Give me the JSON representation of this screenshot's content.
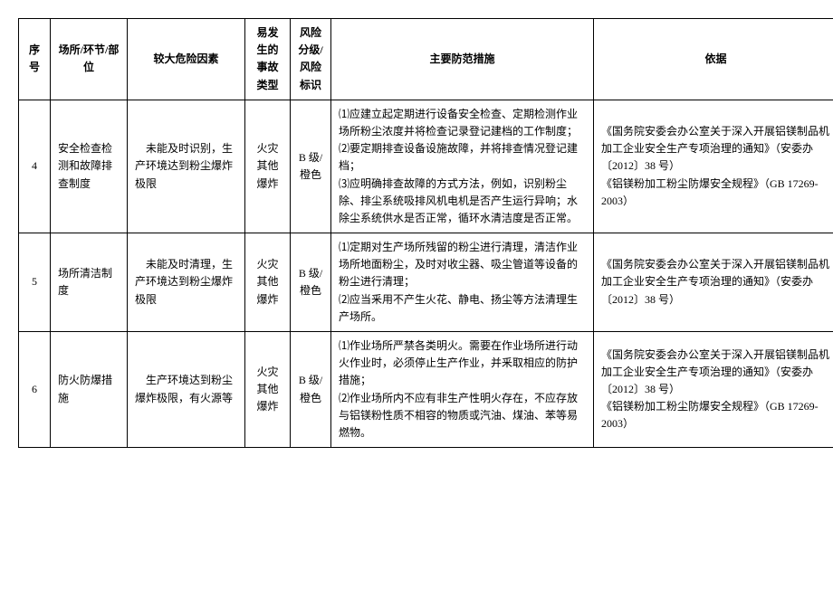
{
  "table": {
    "headers": {
      "seq": "序号",
      "place": "场所/环节/部位",
      "hazard": "较大危险因素",
      "accident": "易发生的事故类型",
      "risk": "风险分级/风险标识",
      "measures": "主要防范措施",
      "basis": "依据"
    },
    "rows": [
      {
        "seq": "4",
        "place": "安全检查检测和故障排查制度",
        "hazard": "未能及时识别，生产环境达到粉尘爆炸极限",
        "accident": "火灾其他爆炸",
        "risk": "B 级/橙色",
        "measures": "⑴应建立起定期进行设备安全检查、定期检测作业场所粉尘浓度并将检查记录登记建档的工作制度；\n⑵要定期排查设备设施故障，并将排查情况登记建档；\n⑶应明确排查故障的方式方法，例如，识别粉尘除、排尘系统吸排风机电机是否产生运行异响；水除尘系统供水是否正常，循环水清洁度是否正常。",
        "basis": "《国务院安委会办公室关于深入开展铝镁制品机加工企业安全生产专项治理的通知》（安委办〔2012〕38 号）\n《铝镁粉加工粉尘防爆安全规程》（GB 17269-2003）"
      },
      {
        "seq": "5",
        "place": "场所清洁制度",
        "hazard": "未能及时清理，生产环境达到粉尘爆炸极限",
        "accident": "火灾其他爆炸",
        "risk": "B 级/橙色",
        "measures": "⑴定期对生产场所残留的粉尘进行清理，清洁作业场所地面粉尘，及时对收尘器、吸尘管道等设备的粉尘进行清理；\n⑵应当釆用不产生火花、静电、扬尘等方法清理生产场所。",
        "basis": "《国务院安委会办公室关于深入开展铝镁制品机加工企业安全生产专项治理的通知》（安委办〔2012〕38 号）"
      },
      {
        "seq": "6",
        "place": "防火防爆措施",
        "hazard": "生产环境达到粉尘爆炸极限，有火源等",
        "accident": "火灾其他爆炸",
        "risk": "B 级/橙色",
        "measures": "⑴作业场所严禁各类明火。需要在作业场所进行动火作业时，必须停止生产作业，并釆取相应的防护措施；\n⑵作业场所内不应有非生产性明火存在，不应存放与铝镁粉性质不相容的物质或汽油、煤油、苯等易燃物。",
        "basis": "《国务院安委会办公室关于深入开展铝镁制品机加工企业安全生产专项治理的通知》（安委办〔2012〕38 号）\n《铝镁粉加工粉尘防爆安全规程》（GB 17269-2003）"
      }
    ]
  },
  "styling": {
    "font_family": "SimSun",
    "font_size": 12,
    "border_color": "#000000",
    "background_color": "#ffffff",
    "line_height": 1.6
  }
}
